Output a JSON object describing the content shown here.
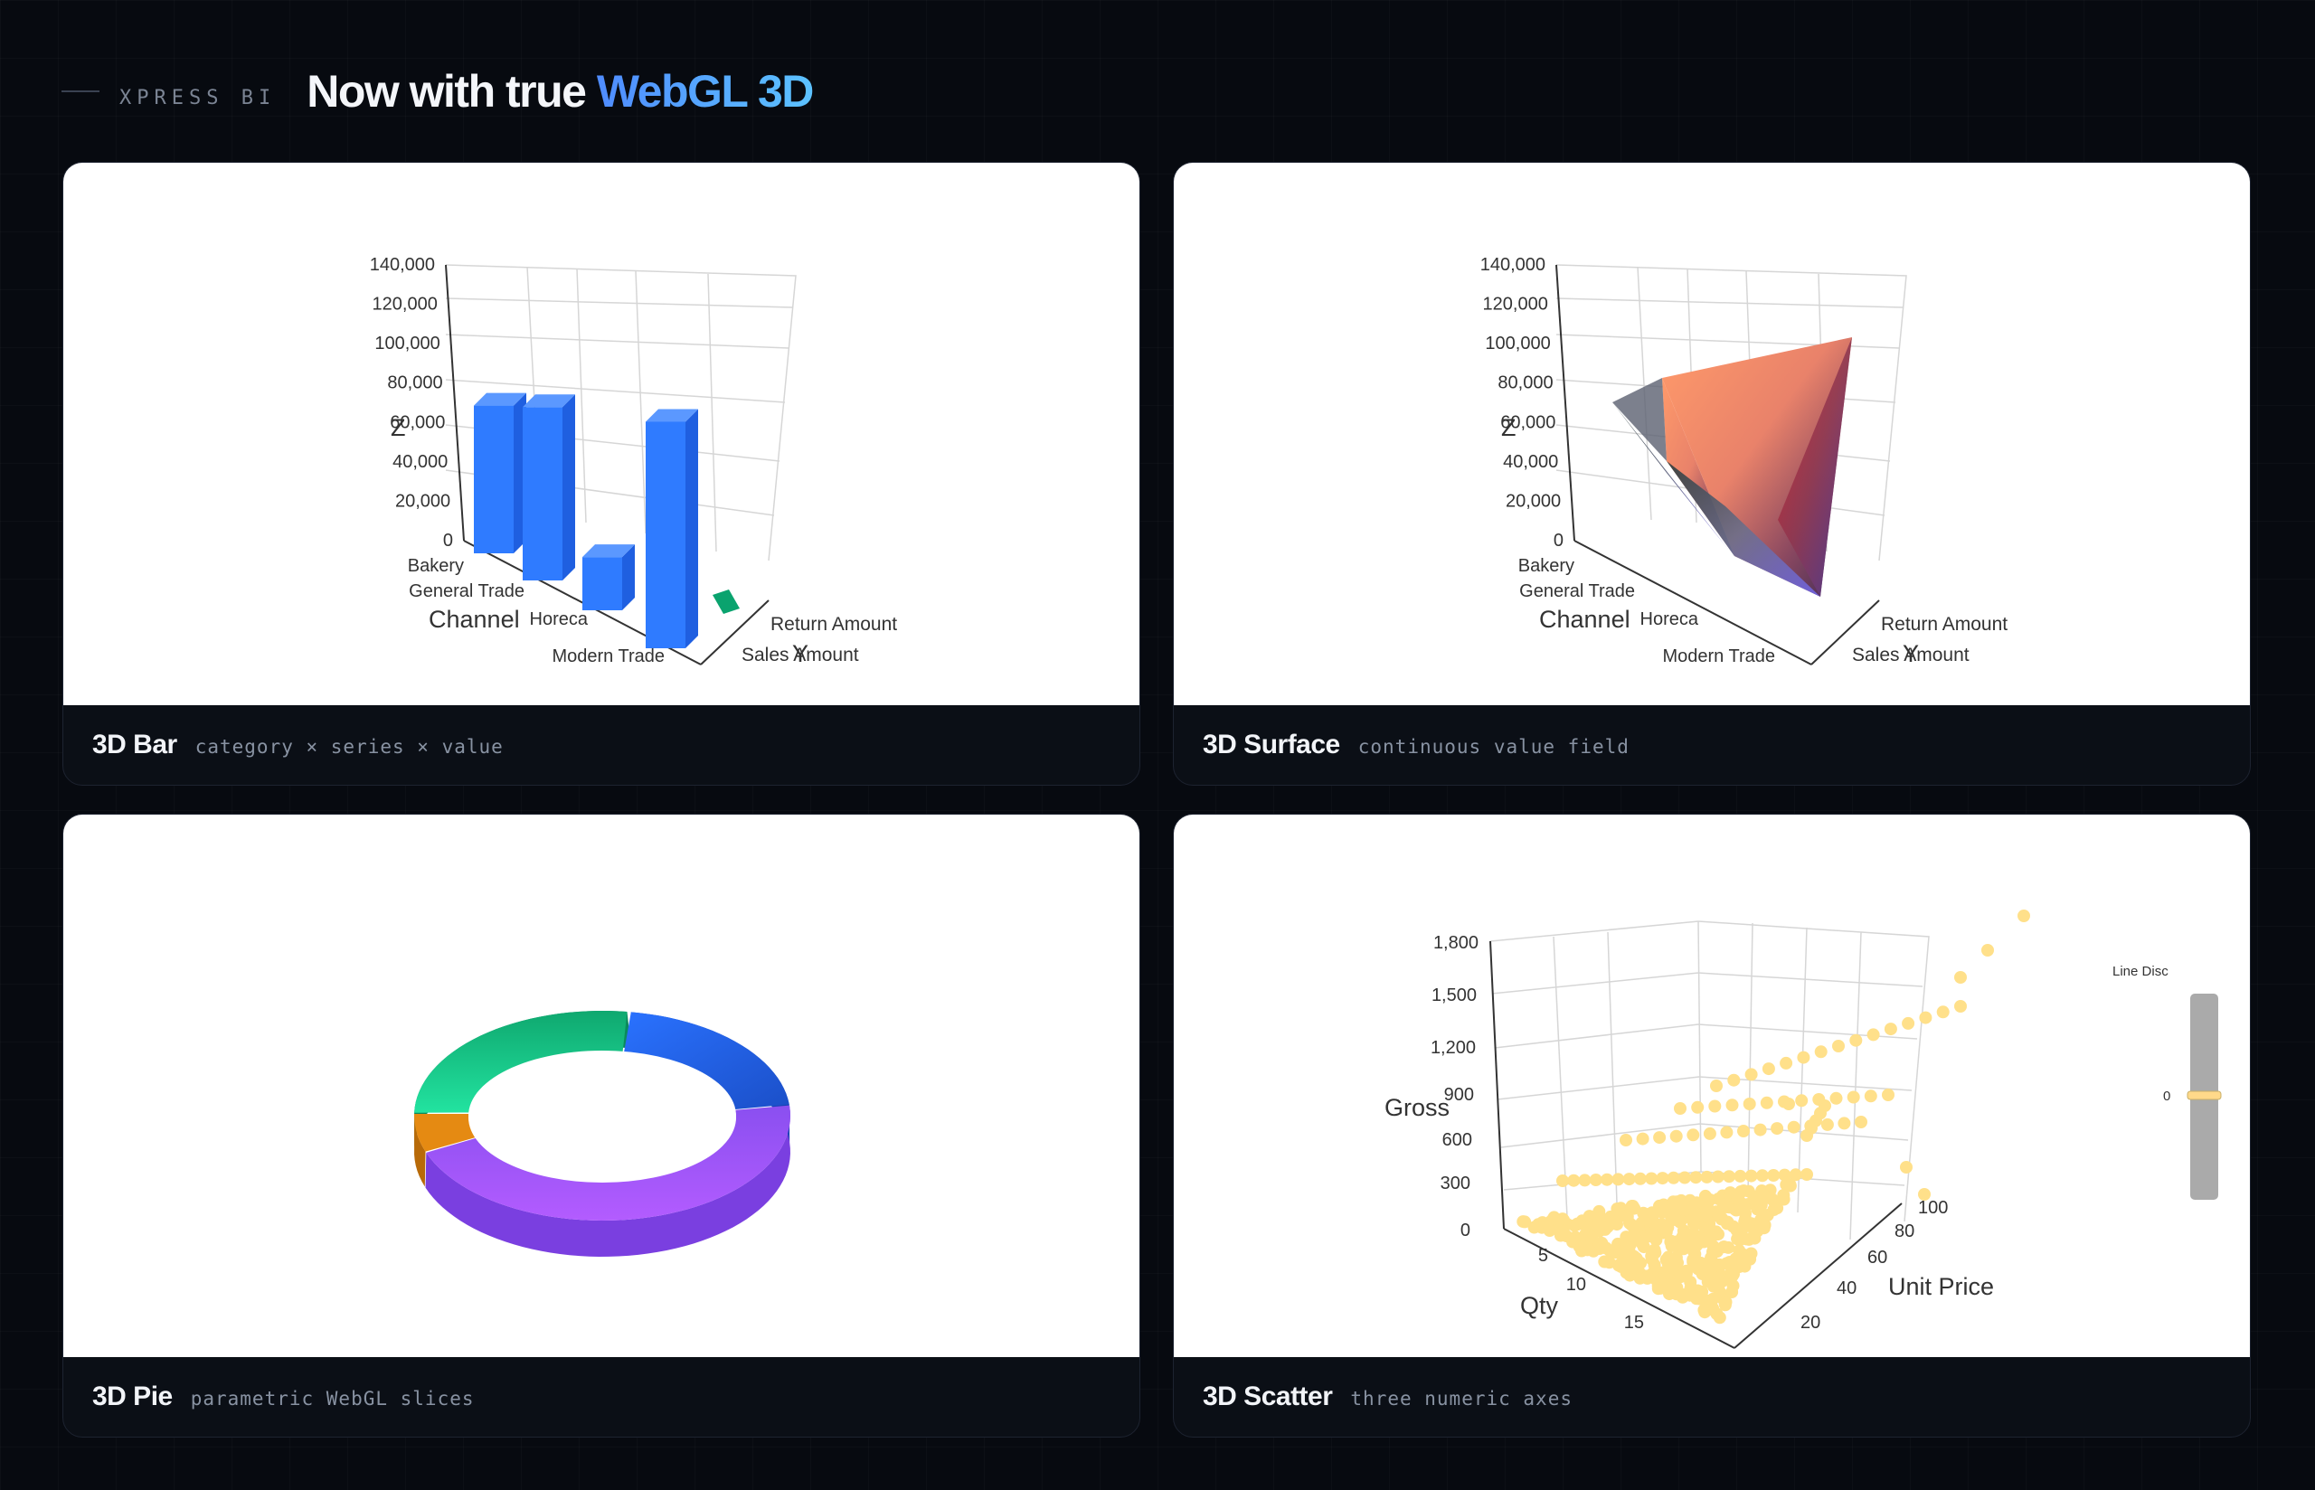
{
  "header": {
    "brand": "XPRESS BI",
    "title_main": "Now with true",
    "title_accent": "WebGL 3D"
  },
  "cards": [
    {
      "title": "3D Bar",
      "subtitle": "category × series × value"
    },
    {
      "title": "3D Surface",
      "subtitle": "continuous value field"
    },
    {
      "title": "3D Pie",
      "subtitle": "parametric WebGL slices"
    },
    {
      "title": "3D Scatter",
      "subtitle": "three numeric axes"
    }
  ],
  "chart_data": [
    {
      "type": "bar",
      "categories": [
        "Bakery",
        "General Trade",
        "Horeca",
        "Modern Trade"
      ],
      "series": [
        {
          "name": "Sales Amount",
          "values": [
            75000,
            88000,
            27000,
            115000
          ]
        },
        {
          "name": "Return Amount",
          "values": [
            0,
            0,
            0,
            2000
          ]
        }
      ],
      "xlabel": "Channel",
      "ylabel": "Y",
      "zlabel": "Z",
      "zticks": [
        "0",
        "20,000",
        "40,000",
        "60,000",
        "80,000",
        "100,000",
        "120,000",
        "140,000"
      ],
      "zlim": [
        0,
        140000
      ],
      "colors": {
        "sales": "#2f7bff",
        "return": "#0aa36e"
      }
    },
    {
      "type": "surface",
      "categories": [
        "Bakery",
        "General Trade",
        "Horeca",
        "Modern Trade"
      ],
      "series": [
        "Sales Amount",
        "Return Amount"
      ],
      "xlabel": "Channel",
      "ylabel": "Y",
      "zlabel": "Z",
      "zticks": [
        "0",
        "20,000",
        "40,000",
        "60,000",
        "80,000",
        "100,000",
        "120,000",
        "140,000"
      ],
      "zlim": [
        0,
        140000
      ]
    },
    {
      "type": "pie",
      "slices": [
        {
          "label": "Purple",
          "value": 46,
          "color": "#9b5cf6"
        },
        {
          "label": "Blue",
          "value": 21,
          "color": "#2f6df0"
        },
        {
          "label": "Green",
          "value": 27,
          "color": "#14c98a"
        },
        {
          "label": "Orange",
          "value": 6,
          "color": "#e58a12"
        }
      ]
    },
    {
      "type": "scatter",
      "xlabel": "Qty",
      "ylabel": "Unit Price",
      "zlabel": "Gross",
      "xticks": [
        "5",
        "10",
        "15"
      ],
      "yticks": [
        "20",
        "40",
        "60",
        "80",
        "100"
      ],
      "zticks": [
        "0",
        "300",
        "600",
        "900",
        "1,200",
        "1,500",
        "1,800"
      ],
      "zlim": [
        0,
        1800
      ],
      "color": "#ffe08a",
      "visualmap": {
        "label": "Line Disc",
        "value": "0"
      }
    }
  ]
}
